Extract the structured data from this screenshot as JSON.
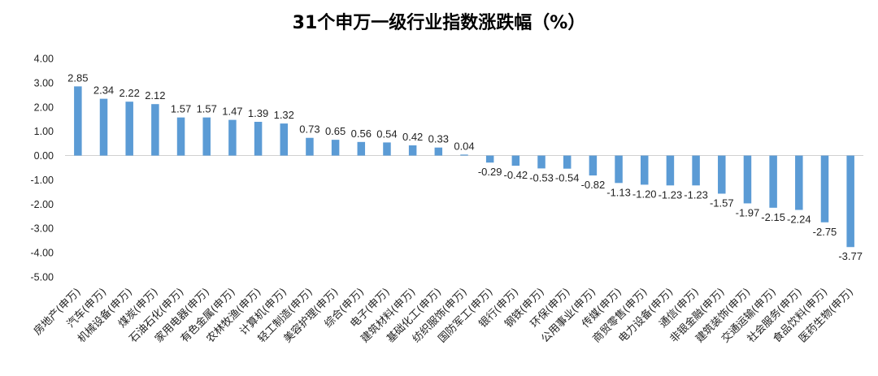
{
  "chart_data": {
    "type": "bar",
    "title": "31个申万一级行业指数涨跌幅（%）",
    "xlabel": "",
    "ylabel": "",
    "ylim": [
      -5,
      4
    ],
    "yticks": [
      "4.00",
      "3.00",
      "2.00",
      "1.00",
      "0.00",
      "-1.00",
      "-2.00",
      "-3.00",
      "-4.00",
      "-5.00"
    ],
    "grid": false,
    "legend": "none",
    "bar_color": "#5b9bd5",
    "categories": [
      "房地产(申万)",
      "汽车(申万)",
      "机械设备(申万)",
      "煤炭(申万)",
      "石油石化(申万)",
      "家用电器(申万)",
      "有色金属(申万)",
      "农林牧渔(申万)",
      "计算机(申万)",
      "轻工制造(申万)",
      "美容护理(申万)",
      "综合(申万)",
      "电子(申万)",
      "建筑材料(申万)",
      "基础化工(申万)",
      "纺织服饰(申万)",
      "国防军工(申万)",
      "银行(申万)",
      "钢铁(申万)",
      "环保(申万)",
      "公用事业(申万)",
      "传媒(申万)",
      "商贸零售(申万)",
      "电力设备(申万)",
      "通信(申万)",
      "非银金融(申万)",
      "建筑装饰(申万)",
      "交通运输(申万)",
      "社会服务(申万)",
      "食品饮料(申万)",
      "医药生物(申万)"
    ],
    "values": [
      2.85,
      2.34,
      2.22,
      2.12,
      1.57,
      1.57,
      1.47,
      1.39,
      1.32,
      0.73,
      0.65,
      0.56,
      0.54,
      0.42,
      0.33,
      0.04,
      -0.29,
      -0.42,
      -0.53,
      -0.54,
      -0.82,
      -1.13,
      -1.2,
      -1.23,
      -1.23,
      -1.57,
      -1.97,
      -2.15,
      -2.24,
      -2.75,
      -3.77
    ],
    "data_labels": [
      "2.85",
      "2.34",
      "2.22",
      "2.12",
      "1.57",
      "1.57",
      "1.47",
      "1.39",
      "1.32",
      "0.73",
      "0.65",
      "0.56",
      "0.54",
      "0.42",
      "0.33",
      "0.04",
      "-0.29",
      "-0.42",
      "-0.53",
      "-0.54",
      "-0.82",
      "-1.13",
      "-1.20",
      "-1.23",
      "-1.23",
      "-1.57",
      "-1.97",
      "-2.15",
      "-2.24",
      "-2.75",
      "-3.77"
    ]
  }
}
